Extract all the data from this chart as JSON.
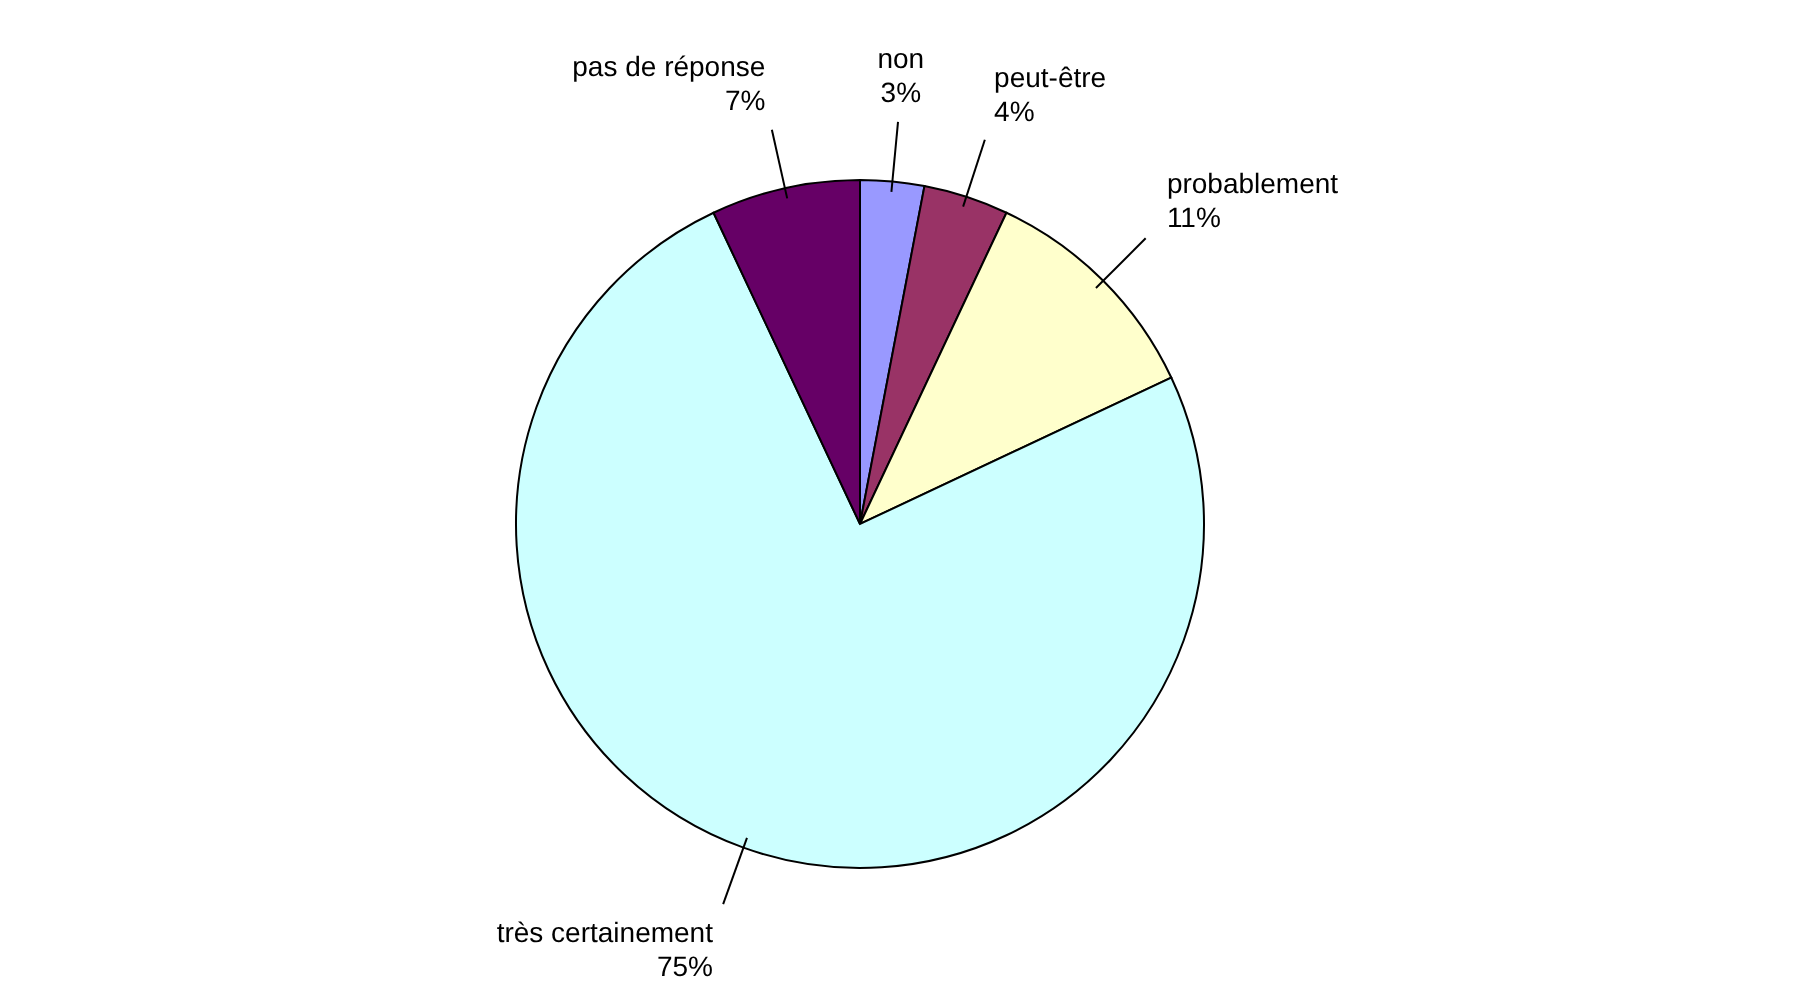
{
  "chart_data": {
    "type": "pie",
    "categories": [
      "non",
      "peut-être",
      "probablement",
      "très certainement",
      "pas de réponse"
    ],
    "values": [
      3,
      4,
      11,
      75,
      7
    ],
    "value_labels": [
      "3%",
      "4%",
      "11%",
      "75%",
      "7%"
    ],
    "colors": [
      "#9999ff",
      "#993366",
      "#ffffcc",
      "#ccffff",
      "#660066"
    ],
    "legend": false
  }
}
